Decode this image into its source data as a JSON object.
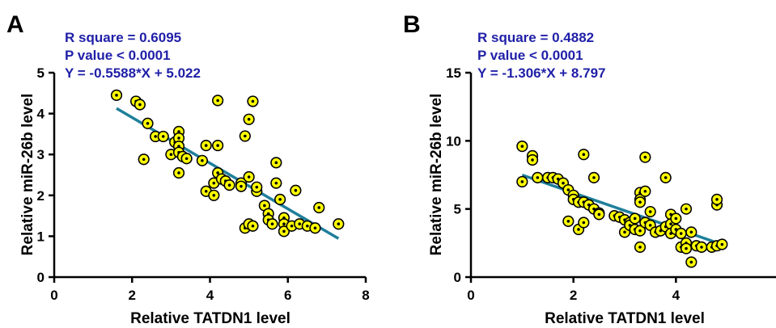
{
  "chart_data": [
    {
      "type": "scatter",
      "panel_label": "A",
      "stats": [
        "R square = 0.6095",
        "P value < 0.0001",
        "Y = -0.5588*X + 5.022"
      ],
      "xlabel": "Relative TATDN1 level",
      "ylabel": "Relative miR-26b level",
      "xlim": [
        0,
        8
      ],
      "ylim": [
        0,
        5
      ],
      "xticks": [
        0,
        2,
        4,
        6,
        8
      ],
      "yticks": [
        0,
        1,
        2,
        3,
        4,
        5
      ],
      "fit": {
        "slope": -0.5588,
        "intercept": 5.022,
        "x_range": [
          1.6,
          7.3
        ]
      },
      "points": [
        [
          1.6,
          4.45
        ],
        [
          2.1,
          4.3
        ],
        [
          2.2,
          4.22
        ],
        [
          2.3,
          2.88
        ],
        [
          2.4,
          3.76
        ],
        [
          2.6,
          3.44
        ],
        [
          2.8,
          3.44
        ],
        [
          3.0,
          3.0
        ],
        [
          3.1,
          3.3
        ],
        [
          3.2,
          3.56
        ],
        [
          3.2,
          3.4
        ],
        [
          3.2,
          3.2
        ],
        [
          3.2,
          3.05
        ],
        [
          3.2,
          2.55
        ],
        [
          3.3,
          2.95
        ],
        [
          3.4,
          2.9
        ],
        [
          3.8,
          2.85
        ],
        [
          3.9,
          3.22
        ],
        [
          3.9,
          2.1
        ],
        [
          4.1,
          2.3
        ],
        [
          4.1,
          2.0
        ],
        [
          4.2,
          3.22
        ],
        [
          4.2,
          4.32
        ],
        [
          4.2,
          2.55
        ],
        [
          4.3,
          2.4
        ],
        [
          4.4,
          2.35
        ],
        [
          4.5,
          2.25
        ],
        [
          4.8,
          2.3
        ],
        [
          4.8,
          2.22
        ],
        [
          4.9,
          3.45
        ],
        [
          4.9,
          1.2
        ],
        [
          5.0,
          3.86
        ],
        [
          5.0,
          2.45
        ],
        [
          5.0,
          1.3
        ],
        [
          5.1,
          4.3
        ],
        [
          5.1,
          1.25
        ],
        [
          5.2,
          2.1
        ],
        [
          5.2,
          2.2
        ],
        [
          5.4,
          1.75
        ],
        [
          5.5,
          1.55
        ],
        [
          5.5,
          1.4
        ],
        [
          5.6,
          1.3
        ],
        [
          5.7,
          2.8
        ],
        [
          5.7,
          2.3
        ],
        [
          5.8,
          1.9
        ],
        [
          5.9,
          1.45
        ],
        [
          5.9,
          1.3
        ],
        [
          5.9,
          1.12
        ],
        [
          6.1,
          1.25
        ],
        [
          6.2,
          2.12
        ],
        [
          6.3,
          1.3
        ],
        [
          6.5,
          1.25
        ],
        [
          6.7,
          1.2
        ],
        [
          6.8,
          1.7
        ],
        [
          7.3,
          1.3
        ]
      ]
    },
    {
      "type": "scatter",
      "panel_label": "B",
      "stats": [
        "R square = 0.4882",
        "P value < 0.0001",
        "Y = -1.306*X + 8.797"
      ],
      "xlabel": "Relative TATDN1 level",
      "ylabel": "Relative miR-26b level",
      "xlim": [
        0,
        6
      ],
      "ylim": [
        0,
        15
      ],
      "xticks": [
        0,
        2,
        4
      ],
      "yticks": [
        0,
        5,
        10,
        15
      ],
      "fit": {
        "slope": -1.306,
        "intercept": 8.797,
        "x_range": [
          1.0,
          4.8
        ]
      },
      "points": [
        [
          1.0,
          9.6
        ],
        [
          1.0,
          7.0
        ],
        [
          1.2,
          8.9
        ],
        [
          1.2,
          8.6
        ],
        [
          1.3,
          7.3
        ],
        [
          1.5,
          7.3
        ],
        [
          1.6,
          7.3
        ],
        [
          1.7,
          7.2
        ],
        [
          1.8,
          6.9
        ],
        [
          1.9,
          6.4
        ],
        [
          1.9,
          4.1
        ],
        [
          2.0,
          6.0
        ],
        [
          2.0,
          5.7
        ],
        [
          2.1,
          5.5
        ],
        [
          2.1,
          3.5
        ],
        [
          2.2,
          9.0
        ],
        [
          2.2,
          5.5
        ],
        [
          2.2,
          4.0
        ],
        [
          2.3,
          5.3
        ],
        [
          2.4,
          7.3
        ],
        [
          2.4,
          5.0
        ],
        [
          2.5,
          4.7
        ],
        [
          2.5,
          4.6
        ],
        [
          2.8,
          4.5
        ],
        [
          2.9,
          4.4
        ],
        [
          3.0,
          4.2
        ],
        [
          3.0,
          3.3
        ],
        [
          3.1,
          4.0
        ],
        [
          3.1,
          3.8
        ],
        [
          3.2,
          4.3
        ],
        [
          3.2,
          3.5
        ],
        [
          3.3,
          6.2
        ],
        [
          3.3,
          5.7
        ],
        [
          3.3,
          5.5
        ],
        [
          3.3,
          3.4
        ],
        [
          3.3,
          2.2
        ],
        [
          3.4,
          8.8
        ],
        [
          3.4,
          6.3
        ],
        [
          3.4,
          4.0
        ],
        [
          3.5,
          4.8
        ],
        [
          3.5,
          3.8
        ],
        [
          3.6,
          3.3
        ],
        [
          3.7,
          3.4
        ],
        [
          3.8,
          7.3
        ],
        [
          3.8,
          3.7
        ],
        [
          3.9,
          4.6
        ],
        [
          3.9,
          3.9
        ],
        [
          3.9,
          3.2
        ],
        [
          4.0,
          4.3
        ],
        [
          4.0,
          3.5
        ],
        [
          4.1,
          3.2
        ],
        [
          4.1,
          2.2
        ],
        [
          4.2,
          5.0
        ],
        [
          4.2,
          2.5
        ],
        [
          4.2,
          2.1
        ],
        [
          4.3,
          1.1
        ],
        [
          4.3,
          3.3
        ],
        [
          4.4,
          2.3
        ],
        [
          4.5,
          2.2
        ],
        [
          4.7,
          2.2
        ],
        [
          4.8,
          2.3
        ],
        [
          4.8,
          5.3
        ],
        [
          4.8,
          5.7
        ],
        [
          4.9,
          2.4
        ]
      ]
    }
  ]
}
